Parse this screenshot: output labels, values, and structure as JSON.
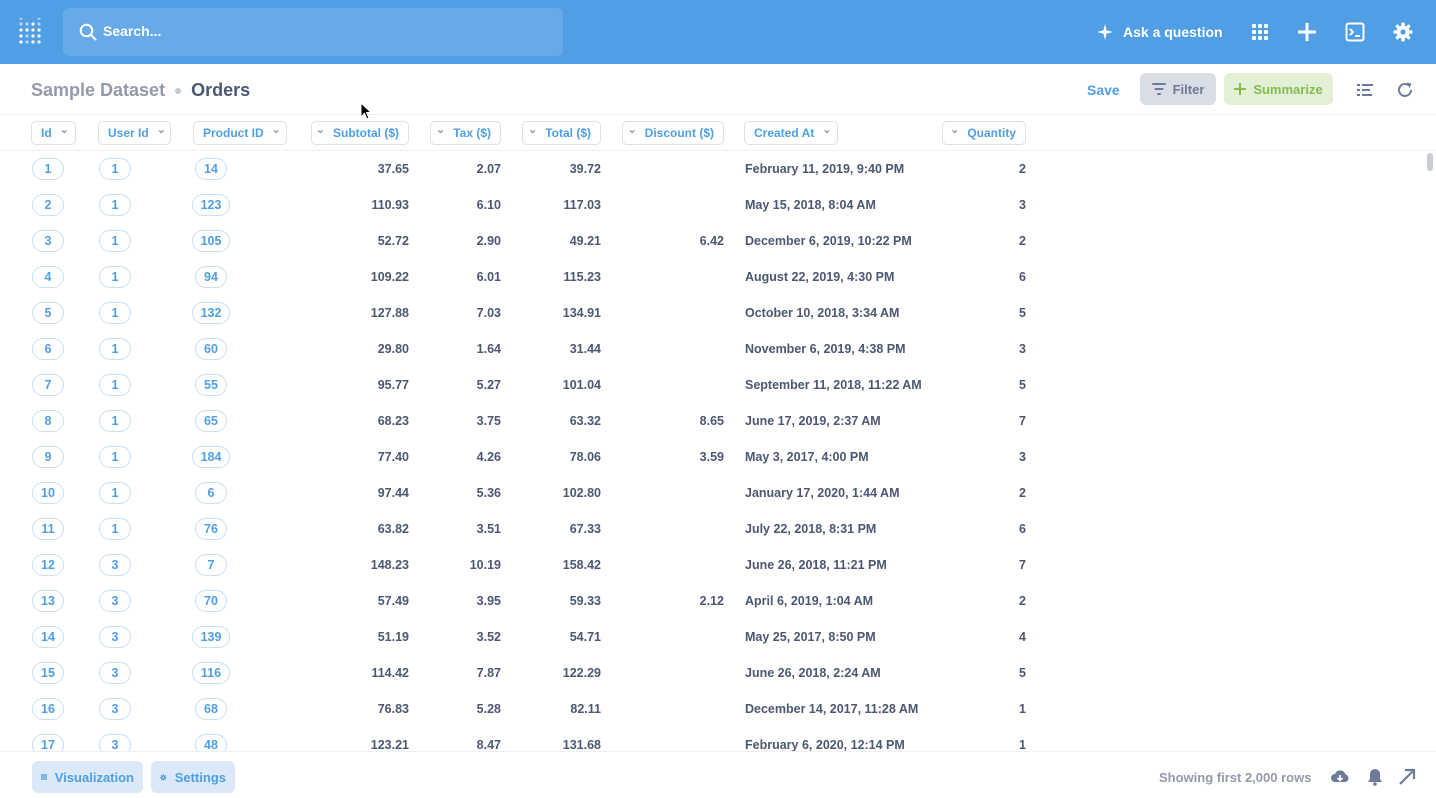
{
  "topbar": {
    "search_placeholder": "Search...",
    "ask_label": "Ask a question",
    "accent": "#509ee3"
  },
  "header": {
    "dataset": "Sample Dataset",
    "table": "Orders",
    "save_label": "Save",
    "filter_label": "Filter",
    "summarize_label": "Summarize"
  },
  "columns": [
    "Id",
    "User Id",
    "Product ID",
    "Subtotal ($)",
    "Tax ($)",
    "Total ($)",
    "Discount ($)",
    "Created At",
    "Quantity"
  ],
  "rows": [
    [
      "1",
      "1",
      "14",
      "37.65",
      "2.07",
      "39.72",
      "",
      "February 11, 2019, 9:40 PM",
      "2"
    ],
    [
      "2",
      "1",
      "123",
      "110.93",
      "6.10",
      "117.03",
      "",
      "May 15, 2018, 8:04 AM",
      "3"
    ],
    [
      "3",
      "1",
      "105",
      "52.72",
      "2.90",
      "49.21",
      "6.42",
      "December 6, 2019, 10:22 PM",
      "2"
    ],
    [
      "4",
      "1",
      "94",
      "109.22",
      "6.01",
      "115.23",
      "",
      "August 22, 2019, 4:30 PM",
      "6"
    ],
    [
      "5",
      "1",
      "132",
      "127.88",
      "7.03",
      "134.91",
      "",
      "October 10, 2018, 3:34 AM",
      "5"
    ],
    [
      "6",
      "1",
      "60",
      "29.80",
      "1.64",
      "31.44",
      "",
      "November 6, 2019, 4:38 PM",
      "3"
    ],
    [
      "7",
      "1",
      "55",
      "95.77",
      "5.27",
      "101.04",
      "",
      "September 11, 2018, 11:22 AM",
      "5"
    ],
    [
      "8",
      "1",
      "65",
      "68.23",
      "3.75",
      "63.32",
      "8.65",
      "June 17, 2019, 2:37 AM",
      "7"
    ],
    [
      "9",
      "1",
      "184",
      "77.40",
      "4.26",
      "78.06",
      "3.59",
      "May 3, 2017, 4:00 PM",
      "3"
    ],
    [
      "10",
      "1",
      "6",
      "97.44",
      "5.36",
      "102.80",
      "",
      "January 17, 2020, 1:44 AM",
      "2"
    ],
    [
      "11",
      "1",
      "76",
      "63.82",
      "3.51",
      "67.33",
      "",
      "July 22, 2018, 8:31 PM",
      "6"
    ],
    [
      "12",
      "3",
      "7",
      "148.23",
      "10.19",
      "158.42",
      "",
      "June 26, 2018, 11:21 PM",
      "7"
    ],
    [
      "13",
      "3",
      "70",
      "57.49",
      "3.95",
      "59.33",
      "2.12",
      "April 6, 2019, 1:04 AM",
      "2"
    ],
    [
      "14",
      "3",
      "139",
      "51.19",
      "3.52",
      "54.71",
      "",
      "May 25, 2017, 8:50 PM",
      "4"
    ],
    [
      "15",
      "3",
      "116",
      "114.42",
      "7.87",
      "122.29",
      "",
      "June 26, 2018, 2:24 AM",
      "5"
    ],
    [
      "16",
      "3",
      "68",
      "76.83",
      "5.28",
      "82.11",
      "",
      "December 14, 2017, 11:28 AM",
      "1"
    ],
    [
      "17",
      "3",
      "48",
      "123.21",
      "8.47",
      "131.68",
      "",
      "February 6, 2020, 12:14 PM",
      "1"
    ]
  ],
  "footer": {
    "visualization_label": "Visualization",
    "settings_label": "Settings",
    "row_count": "Showing first 2,000 rows"
  }
}
